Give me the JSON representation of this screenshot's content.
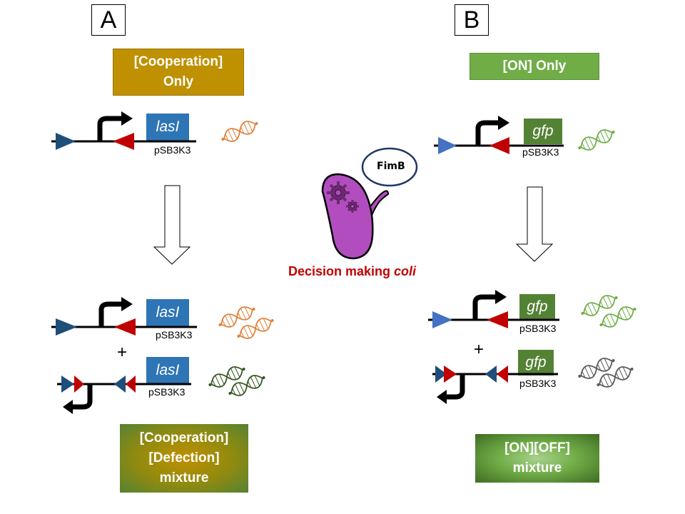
{
  "panels": {
    "a": {
      "label": "A",
      "top_title": "[Cooperation]\nOnly",
      "bottom_title": "[Cooperation]\n[Defection]\nmixture",
      "gene": "lasI",
      "plasmid": "pSB3K3",
      "plus": "+"
    },
    "b": {
      "label": "B",
      "top_title": "[ON] Only",
      "bottom_title": "[ON][OFF]\nmixture",
      "gene": "gfp",
      "plasmid": "pSB3K3",
      "plus": "+"
    }
  },
  "center": {
    "protein_label": "FimB",
    "caption_main": "Decision making ",
    "caption_italic": "coli"
  },
  "colors": {
    "gold_box": "#bf9000",
    "green_box": "#70ad47",
    "dark_green_box": "#548235",
    "lasI_box": "#2e75b6",
    "dark_blue_triangle": "#1f4e79",
    "red_triangle": "#c00000",
    "bacterium": "#b24dbf",
    "caption_red": "#c00000"
  },
  "icons": [
    "dna-helix-icon",
    "promoter-arrow-icon",
    "recombination-site-icon",
    "bacterium-icon",
    "down-arrow-icon"
  ]
}
